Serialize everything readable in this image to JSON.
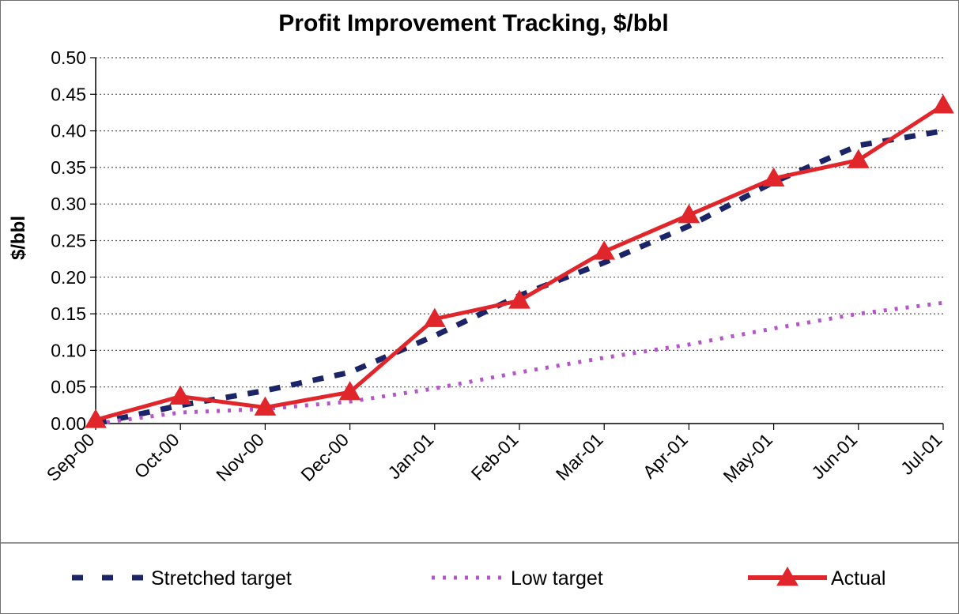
{
  "chart_data": {
    "type": "line",
    "title": "Profit Improvement Tracking, $/bbl",
    "ylabel": "$/bbl",
    "xlabel": "",
    "categories": [
      "Sep-00",
      "Oct-00",
      "Nov-00",
      "Dec-00",
      "Jan-01",
      "Feb-01",
      "Mar-01",
      "Apr-01",
      "May-01",
      "Jun-01",
      "Jul-01"
    ],
    "ylim": [
      0,
      0.5
    ],
    "yticks": [
      "0.00",
      "0.05",
      "0.10",
      "0.15",
      "0.20",
      "0.25",
      "0.30",
      "0.35",
      "0.40",
      "0.45",
      "0.50"
    ],
    "grid": "horizontal dotted",
    "legend_position": "bottom",
    "series": [
      {
        "name": "Stretched target",
        "style": "dashed",
        "color": "#1a2466",
        "values": [
          0.0,
          0.025,
          0.045,
          0.07,
          0.12,
          0.175,
          0.22,
          0.27,
          0.33,
          0.38,
          0.4
        ]
      },
      {
        "name": "Low target",
        "style": "dotted",
        "color": "#b455c8",
        "values": [
          0.0,
          0.015,
          0.02,
          0.03,
          0.048,
          0.07,
          0.09,
          0.108,
          0.13,
          0.15,
          0.165
        ]
      },
      {
        "name": "Actual",
        "style": "solid-triangle",
        "color": "#e0262a",
        "values": [
          0.005,
          0.037,
          0.022,
          0.043,
          0.143,
          0.168,
          0.235,
          0.285,
          0.335,
          0.36,
          0.435
        ]
      }
    ]
  }
}
